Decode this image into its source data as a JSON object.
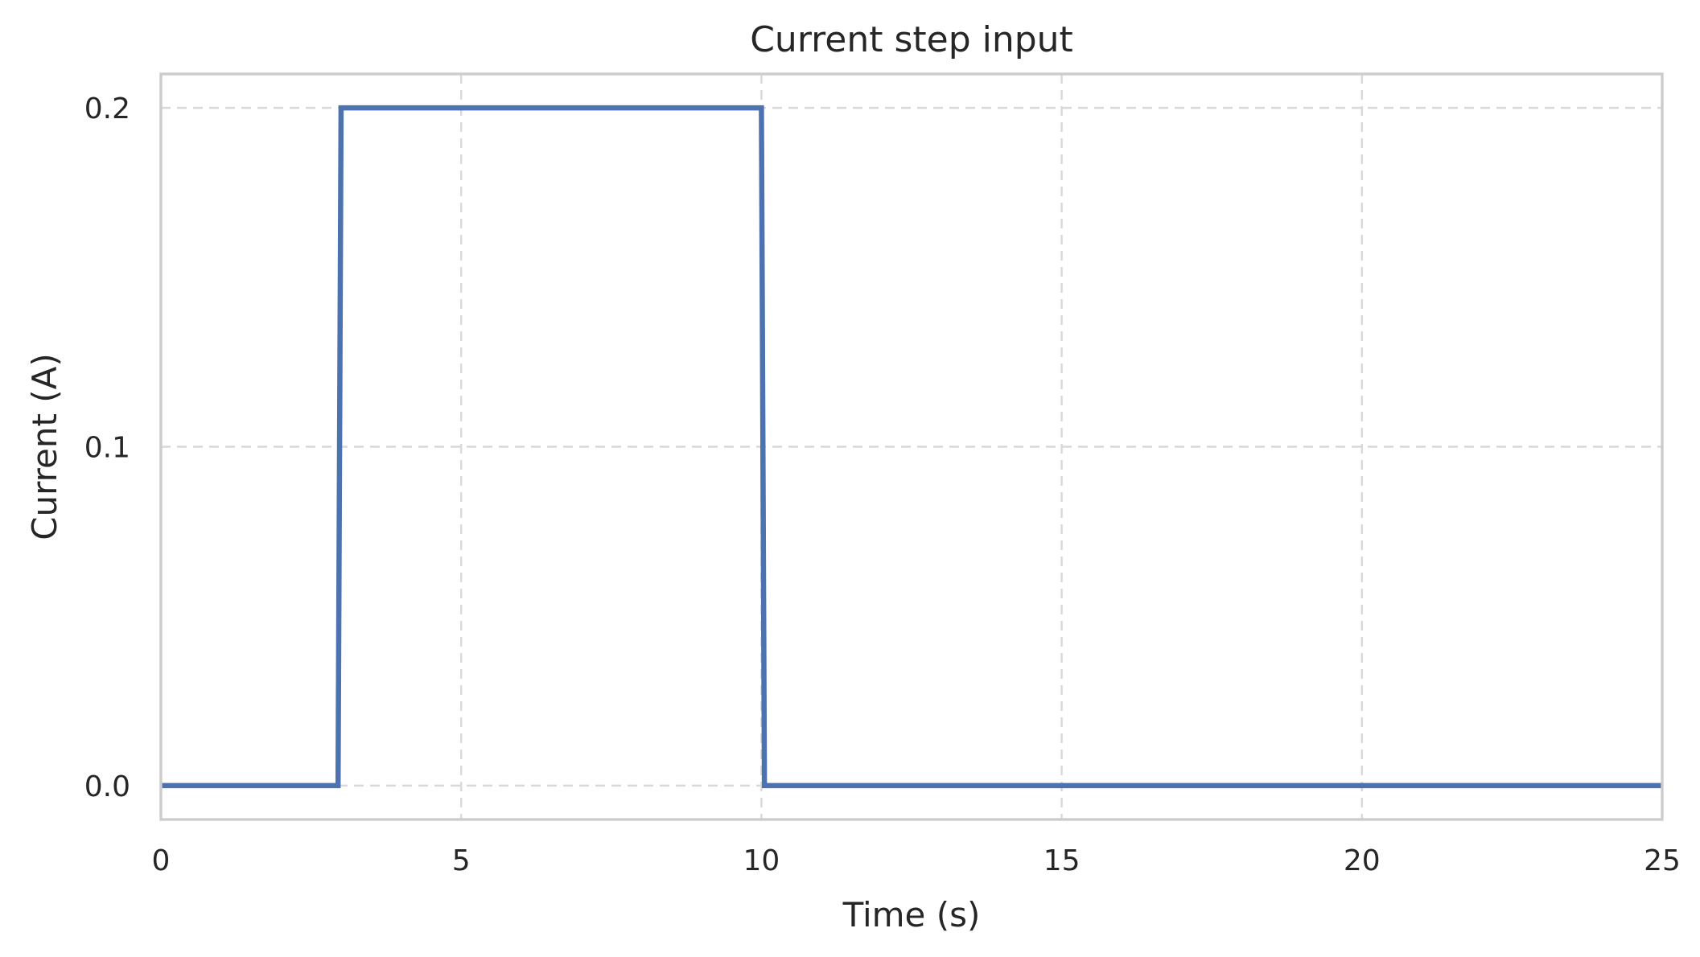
{
  "chart_data": {
    "type": "line",
    "title": "Current step input",
    "xlabel": "Time (s)",
    "ylabel": "Current (A)",
    "xlim": [
      0,
      25
    ],
    "ylim": [
      -0.01,
      0.21
    ],
    "xticks": [
      0,
      5,
      10,
      15,
      20,
      25
    ],
    "xtick_labels": [
      "0",
      "5",
      "10",
      "15",
      "20",
      "25"
    ],
    "yticks": [
      0.0,
      0.1,
      0.2
    ],
    "ytick_labels": [
      "0.0",
      "0.1",
      "0.2"
    ],
    "grid": true,
    "series": [
      {
        "color": "#4c72b0",
        "x": [
          0,
          2.95,
          3.0,
          10.0,
          10.05,
          25
        ],
        "y": [
          0.0,
          0.0,
          0.2,
          0.2,
          0.0,
          0.0
        ]
      }
    ]
  }
}
